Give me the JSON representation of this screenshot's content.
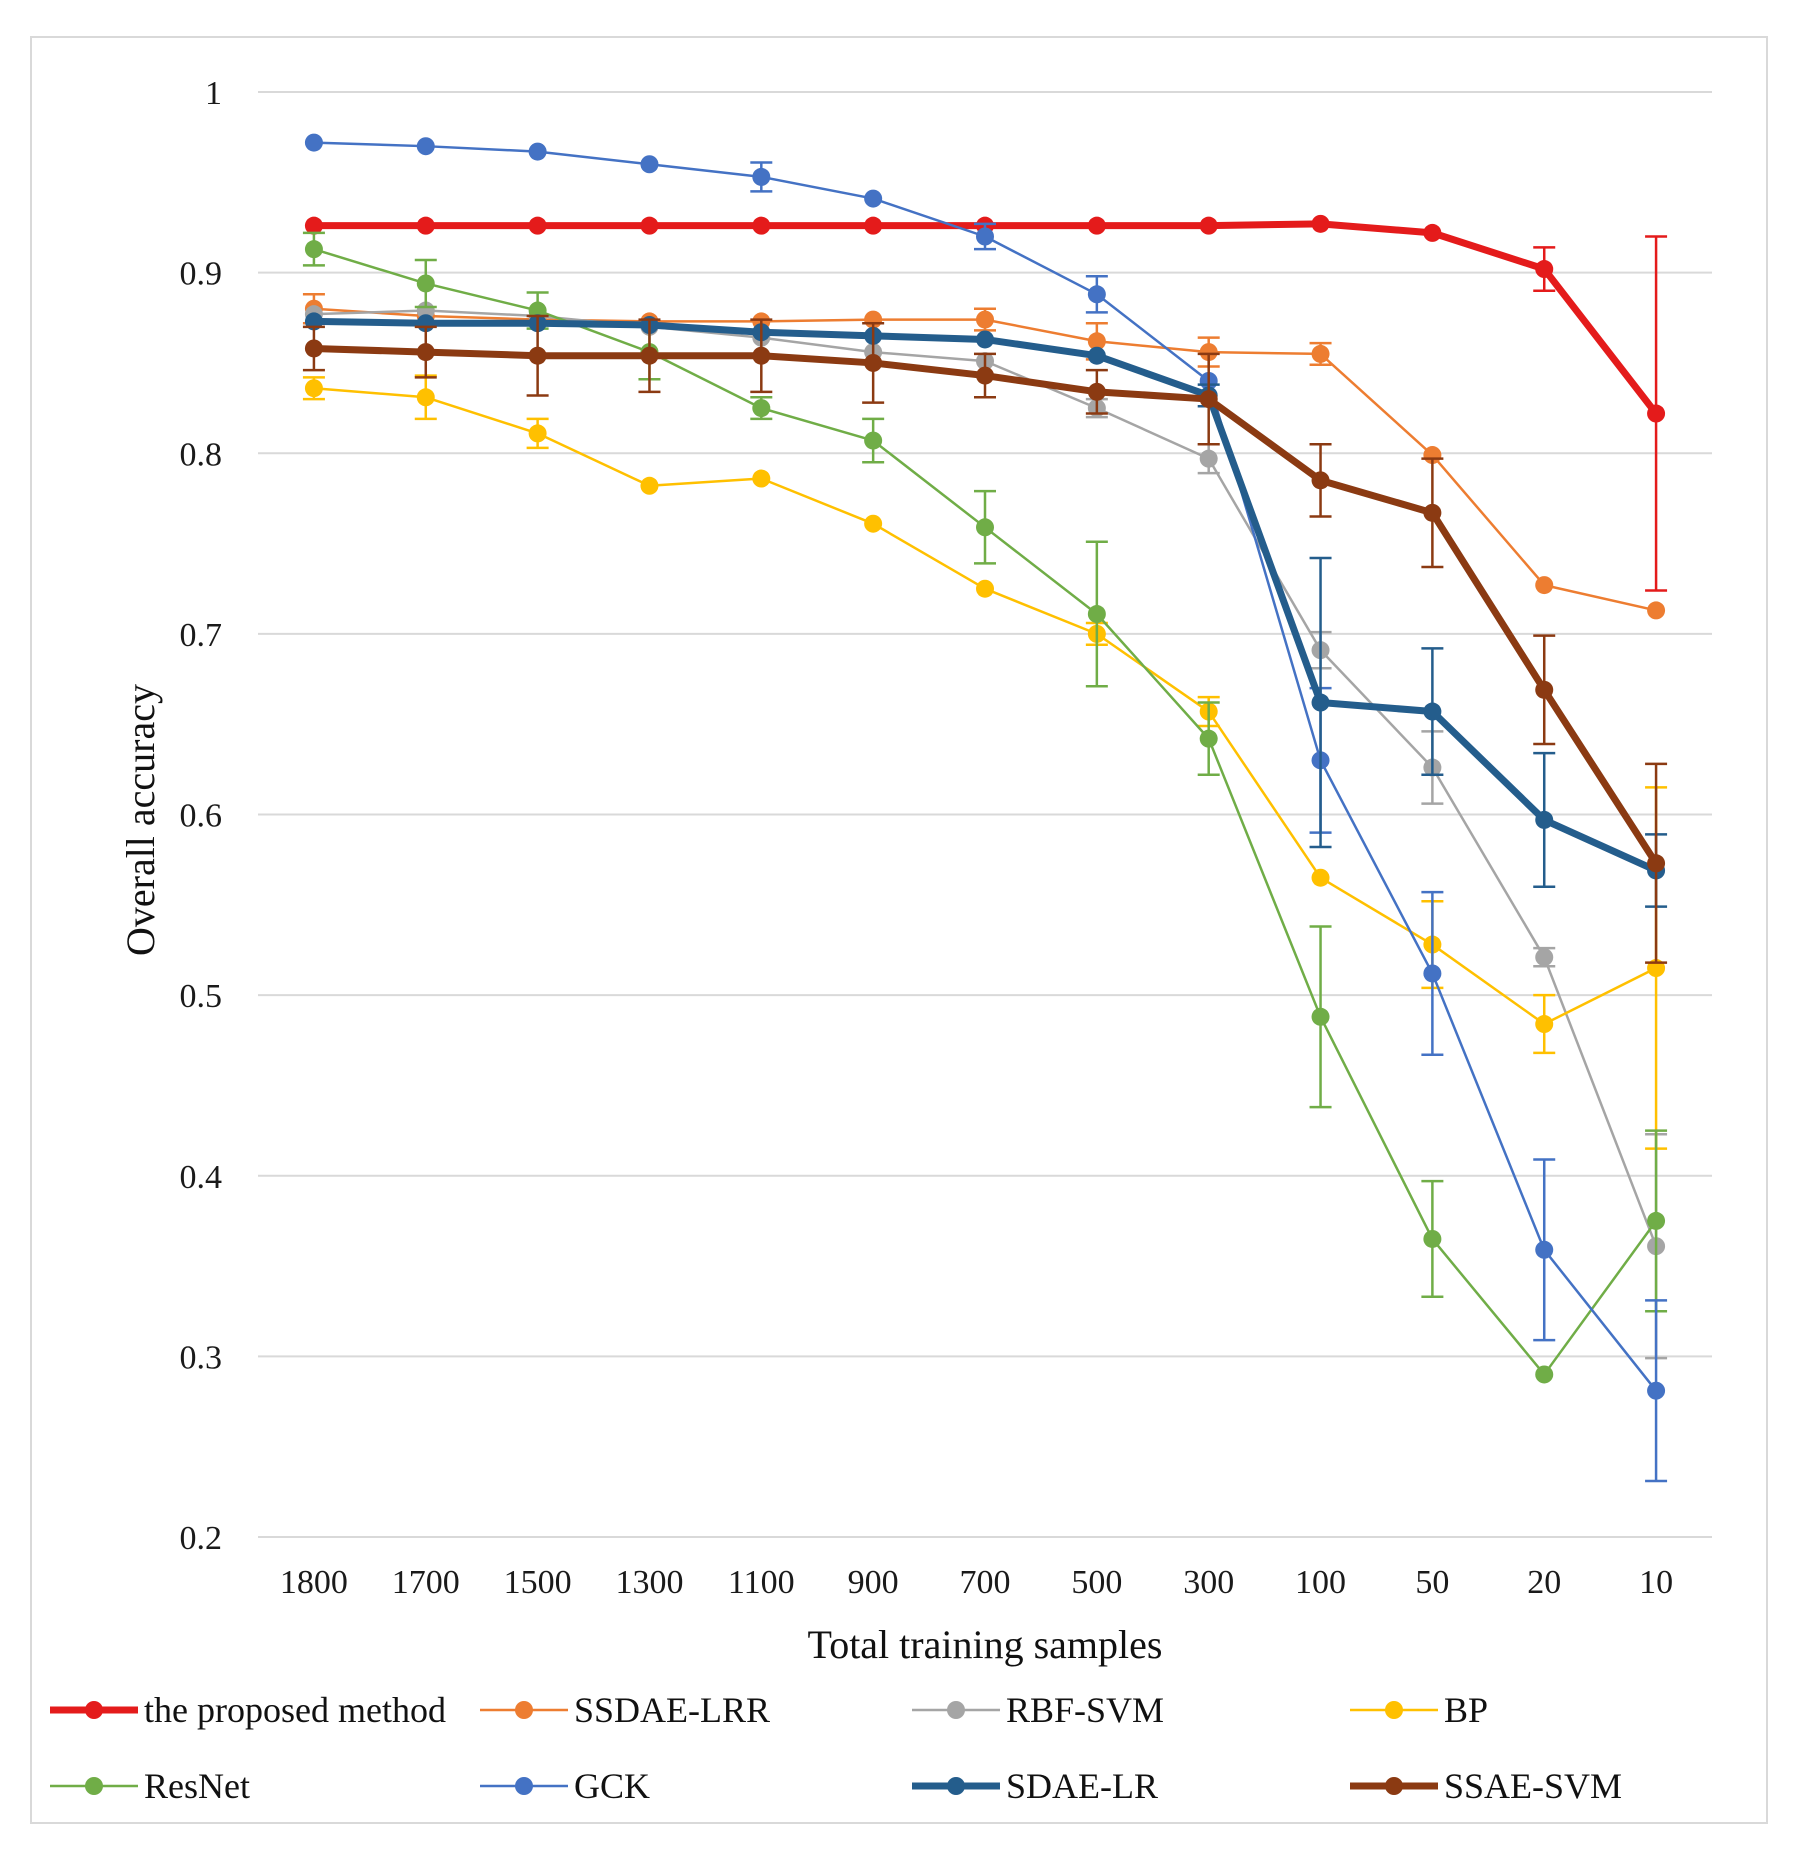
{
  "chart_data": {
    "type": "line",
    "title": "",
    "xlabel": "Total training samples",
    "ylabel": "Overall accuracy",
    "ylim": [
      0.2,
      1.0
    ],
    "yticks": [
      "0.2",
      "0.3",
      "0.4",
      "0.5",
      "0.6",
      "0.7",
      "0.8",
      "0.9",
      "1"
    ],
    "grid": true,
    "legend_position": "bottom",
    "categories": [
      "1800",
      "1700",
      "1500",
      "1300",
      "1100",
      "900",
      "700",
      "500",
      "300",
      "100",
      "50",
      "20",
      "10"
    ],
    "series": [
      {
        "name": "the proposed method",
        "color": "#e41b1b",
        "weight": "thick",
        "values": [
          0.926,
          0.926,
          0.926,
          0.926,
          0.926,
          0.926,
          0.926,
          0.926,
          0.926,
          0.927,
          0.922,
          0.902,
          0.822
        ],
        "errors": [
          0,
          0,
          0,
          0,
          0,
          0,
          0,
          0,
          0,
          0,
          0,
          0.012,
          0.098
        ]
      },
      {
        "name": "SSDAE-LRR",
        "color": "#ed7d31",
        "weight": "thin",
        "values": [
          0.88,
          0.876,
          0.874,
          0.873,
          0.873,
          0.874,
          0.874,
          0.862,
          0.856,
          0.855,
          0.799,
          0.727,
          0.713
        ],
        "errors": [
          0.008,
          0,
          0,
          0,
          0,
          0,
          0.006,
          0.01,
          0.008,
          0.006,
          0,
          0,
          0
        ]
      },
      {
        "name": "RBF-SVM",
        "color": "#a5a5a5",
        "weight": "thin",
        "values": [
          0.877,
          0.879,
          0.876,
          0.87,
          0.864,
          0.856,
          0.851,
          0.825,
          0.797,
          0.691,
          0.626,
          0.521,
          0.361
        ],
        "errors": [
          0,
          0,
          0,
          0,
          0,
          0,
          0,
          0.005,
          0.008,
          0.01,
          0.02,
          0.005,
          0.062
        ]
      },
      {
        "name": "BP",
        "color": "#ffc000",
        "weight": "thin",
        "values": [
          0.836,
          0.831,
          0.811,
          0.782,
          0.786,
          0.761,
          0.725,
          0.7,
          0.657,
          0.565,
          0.528,
          0.484,
          0.515
        ],
        "errors": [
          0.006,
          0.012,
          0.008,
          0,
          0,
          0,
          0,
          0.006,
          0.008,
          0,
          0.024,
          0.016,
          0.1
        ]
      },
      {
        "name": "ResNet",
        "color": "#70ad47",
        "weight": "thin",
        "values": [
          0.913,
          0.894,
          0.879,
          0.856,
          0.825,
          0.807,
          0.759,
          0.711,
          0.642,
          0.488,
          0.365,
          0.29,
          0.375
        ],
        "errors": [
          0.009,
          0.013,
          0.01,
          0.015,
          0.006,
          0.012,
          0.02,
          0.04,
          0.02,
          0.05,
          0.032,
          0,
          0.05
        ]
      },
      {
        "name": "GCK",
        "color": "#4472c4",
        "weight": "thin",
        "values": [
          0.972,
          0.97,
          0.967,
          0.96,
          0.953,
          0.941,
          0.92,
          0.888,
          0.84,
          0.63,
          0.512,
          0.359,
          0.281
        ],
        "errors": [
          0,
          0,
          0,
          0,
          0.008,
          0,
          0.007,
          0.01,
          0,
          0.04,
          0.045,
          0.05,
          0.05
        ]
      },
      {
        "name": "SDAE-LR",
        "color": "#245d8c",
        "weight": "thick",
        "values": [
          0.873,
          0.872,
          0.872,
          0.871,
          0.867,
          0.865,
          0.863,
          0.854,
          0.832,
          0.662,
          0.657,
          0.597,
          0.569
        ],
        "errors": [
          0,
          0,
          0,
          0,
          0,
          0,
          0,
          0,
          0.006,
          0.08,
          0.035,
          0.037,
          0.02
        ]
      },
      {
        "name": "SSAE-SVM",
        "color": "#8b3a12",
        "weight": "thick",
        "values": [
          0.858,
          0.856,
          0.854,
          0.854,
          0.854,
          0.85,
          0.843,
          0.834,
          0.83,
          0.785,
          0.767,
          0.669,
          0.573
        ],
        "errors": [
          0.012,
          0.014,
          0.022,
          0.02,
          0.02,
          0.022,
          0.012,
          0.012,
          0.025,
          0.02,
          0.03,
          0.03,
          0.055
        ]
      }
    ]
  }
}
